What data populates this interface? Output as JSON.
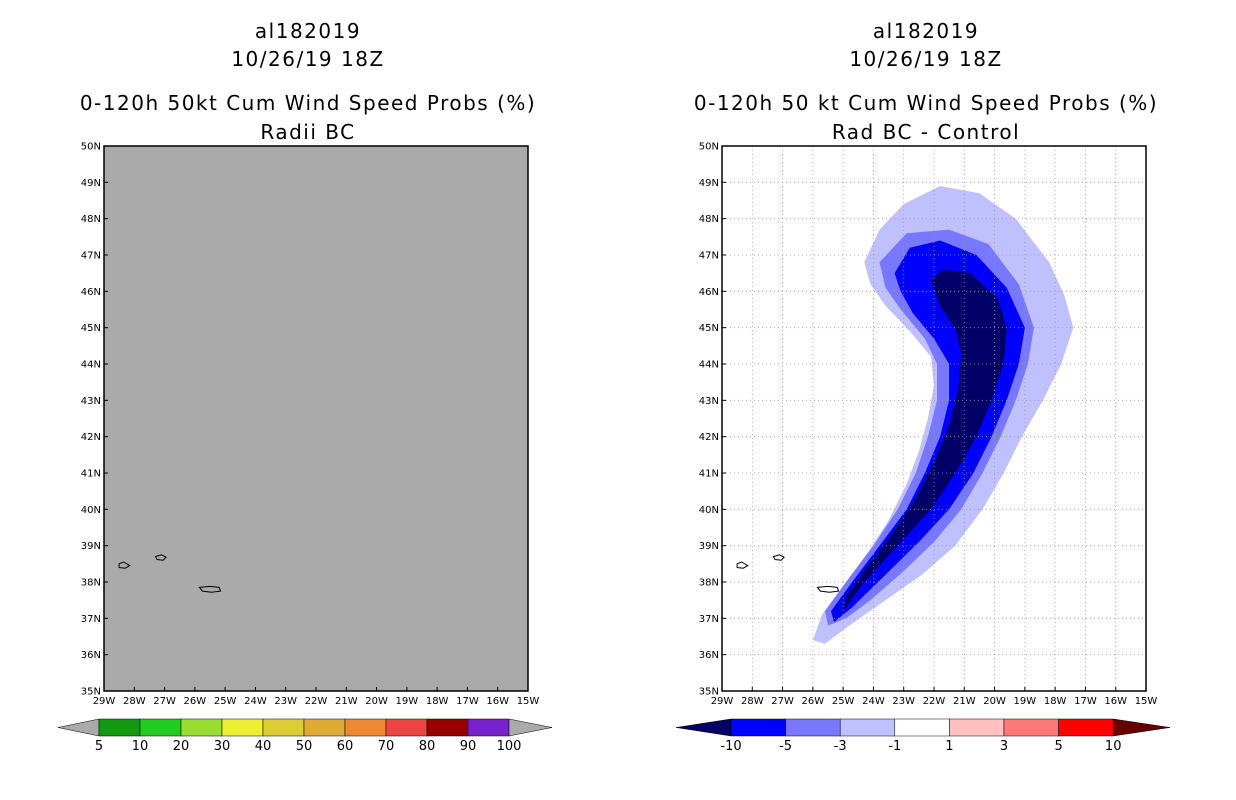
{
  "chart_data": [
    {
      "type": "contour_map",
      "title_lines": [
        "al182019",
        "10/26/19 18Z",
        "0-120h 50kt Cum Wind Speed Probs (%)",
        "Radii BC"
      ],
      "x_ticks": [
        "29W",
        "28W",
        "27W",
        "26W",
        "25W",
        "24W",
        "23W",
        "22W",
        "21W",
        "20W",
        "19W",
        "18W",
        "17W",
        "16W",
        "15W"
      ],
      "y_ticks": [
        "35N",
        "36N",
        "37N",
        "38N",
        "39N",
        "40N",
        "41N",
        "42N",
        "43N",
        "44N",
        "45N",
        "46N",
        "47N",
        "48N",
        "49N",
        "50N"
      ],
      "xlim": [
        -29,
        -15
      ],
      "ylim": [
        35,
        50
      ],
      "grid": false,
      "background": "#aaaaaa",
      "colorbar": {
        "labels": [
          "5",
          "10",
          "20",
          "30",
          "40",
          "50",
          "60",
          "70",
          "80",
          "90",
          "100"
        ],
        "colors": [
          "#119911",
          "#22cc22",
          "#99dd33",
          "#eeee33",
          "#ddcc33",
          "#ddaa33",
          "#ee8833",
          "#ee4444",
          "#990000",
          "#7722cc"
        ],
        "end_colors": [
          "#aaaaaa",
          "#aaaaaa"
        ]
      }
    },
    {
      "type": "contour_map",
      "title_lines": [
        "al182019",
        "10/26/19 18Z",
        "0-120h 50 kt Cum Wind Speed Probs (%)",
        "Rad BC - Control"
      ],
      "x_ticks": [
        "29W",
        "28W",
        "27W",
        "26W",
        "25W",
        "24W",
        "23W",
        "22W",
        "21W",
        "20W",
        "19W",
        "18W",
        "17W",
        "16W",
        "15W"
      ],
      "y_ticks": [
        "35N",
        "36N",
        "37N",
        "38N",
        "39N",
        "40N",
        "41N",
        "42N",
        "43N",
        "44N",
        "45N",
        "46N",
        "47N",
        "48N",
        "49N",
        "50N"
      ],
      "xlim": [
        -29,
        -15
      ],
      "ylim": [
        35,
        50
      ],
      "grid": true,
      "background": "#ffffff",
      "colorbar": {
        "labels": [
          "-10",
          "-5",
          "-3",
          "-1",
          "1",
          "3",
          "5",
          "10"
        ],
        "colors": [
          "#0000ff",
          "#7777ff",
          "#c0c0ff",
          "#ffffff",
          "#ffc0c0",
          "#ff7777",
          "#ff0000"
        ],
        "end_colors": [
          "#000066",
          "#660000"
        ]
      },
      "contours": [
        {
          "level": "-1",
          "color": "#c0c0ff",
          "points": [
            [
              -25.6,
              36.3
            ],
            [
              -26.0,
              36.4
            ],
            [
              -25.7,
              37.1
            ],
            [
              -25.0,
              37.9
            ],
            [
              -24.2,
              38.8
            ],
            [
              -23.5,
              39.7
            ],
            [
              -22.9,
              40.7
            ],
            [
              -22.5,
              41.6
            ],
            [
              -22.2,
              42.5
            ],
            [
              -22.0,
              43.4
            ],
            [
              -22.1,
              44.2
            ],
            [
              -22.8,
              44.9
            ],
            [
              -23.6,
              45.6
            ],
            [
              -24.1,
              46.2
            ],
            [
              -24.3,
              46.8
            ],
            [
              -23.8,
              47.7
            ],
            [
              -23.0,
              48.4
            ],
            [
              -21.8,
              48.9
            ],
            [
              -20.5,
              48.7
            ],
            [
              -19.3,
              48.0
            ],
            [
              -18.2,
              46.8
            ],
            [
              -17.7,
              45.9
            ],
            [
              -17.4,
              45.0
            ],
            [
              -17.8,
              44.0
            ],
            [
              -18.4,
              43.0
            ],
            [
              -19.1,
              42.0
            ],
            [
              -19.7,
              41.0
            ],
            [
              -20.4,
              40.0
            ],
            [
              -21.3,
              39.0
            ],
            [
              -22.4,
              38.2
            ],
            [
              -23.6,
              37.5
            ],
            [
              -24.8,
              36.8
            ]
          ]
        },
        {
          "level": "-3",
          "color": "#7777ff",
          "points": [
            [
              -25.5,
              36.8
            ],
            [
              -25.6,
              37.2
            ],
            [
              -24.9,
              38.0
            ],
            [
              -24.0,
              39.0
            ],
            [
              -23.2,
              40.0
            ],
            [
              -22.6,
              41.0
            ],
            [
              -22.2,
              42.0
            ],
            [
              -21.9,
              43.0
            ],
            [
              -21.9,
              44.0
            ],
            [
              -22.3,
              44.7
            ],
            [
              -23.1,
              45.5
            ],
            [
              -23.6,
              46.1
            ],
            [
              -23.8,
              46.8
            ],
            [
              -22.9,
              47.6
            ],
            [
              -21.5,
              47.7
            ],
            [
              -20.2,
              47.3
            ],
            [
              -19.2,
              46.2
            ],
            [
              -18.7,
              45.0
            ],
            [
              -18.9,
              44.0
            ],
            [
              -19.3,
              43.0
            ],
            [
              -19.8,
              42.0
            ],
            [
              -20.4,
              41.0
            ],
            [
              -21.1,
              40.0
            ],
            [
              -22.0,
              39.1
            ],
            [
              -23.0,
              38.3
            ],
            [
              -24.1,
              37.5
            ],
            [
              -24.9,
              37.0
            ]
          ]
        },
        {
          "level": "-5",
          "color": "#0000ff",
          "points": [
            [
              -25.3,
              36.9
            ],
            [
              -25.4,
              37.2
            ],
            [
              -24.7,
              38.0
            ],
            [
              -23.8,
              39.0
            ],
            [
              -22.9,
              40.0
            ],
            [
              -22.3,
              41.0
            ],
            [
              -21.8,
              42.0
            ],
            [
              -21.5,
              43.0
            ],
            [
              -21.5,
              44.0
            ],
            [
              -22.0,
              44.7
            ],
            [
              -22.7,
              45.4
            ],
            [
              -23.1,
              46.0
            ],
            [
              -23.3,
              46.5
            ],
            [
              -22.8,
              47.2
            ],
            [
              -21.8,
              47.4
            ],
            [
              -20.6,
              47.0
            ],
            [
              -19.6,
              46.1
            ],
            [
              -19.0,
              45.0
            ],
            [
              -19.2,
              44.0
            ],
            [
              -19.6,
              43.0
            ],
            [
              -20.1,
              42.0
            ],
            [
              -20.7,
              41.0
            ],
            [
              -21.5,
              40.0
            ],
            [
              -22.5,
              39.1
            ],
            [
              -23.6,
              38.2
            ],
            [
              -24.7,
              37.3
            ]
          ]
        },
        {
          "level": "-10",
          "color": "#000066",
          "points": [
            [
              -25.0,
              37.2
            ],
            [
              -24.9,
              37.6
            ],
            [
              -24.3,
              38.3
            ],
            [
              -23.4,
              39.3
            ],
            [
              -22.6,
              40.3
            ],
            [
              -22.0,
              41.3
            ],
            [
              -21.5,
              42.3
            ],
            [
              -21.2,
              43.3
            ],
            [
              -21.1,
              44.3
            ],
            [
              -21.3,
              45.0
            ],
            [
              -21.8,
              45.6
            ],
            [
              -22.1,
              46.3
            ],
            [
              -21.7,
              46.6
            ],
            [
              -20.8,
              46.5
            ],
            [
              -19.9,
              45.8
            ],
            [
              -19.6,
              45.0
            ],
            [
              -19.7,
              44.0
            ],
            [
              -20.1,
              43.0
            ],
            [
              -20.6,
              42.0
            ],
            [
              -21.3,
              41.0
            ],
            [
              -22.1,
              40.0
            ],
            [
              -23.2,
              39.0
            ],
            [
              -24.3,
              38.0
            ]
          ]
        }
      ]
    }
  ],
  "islands": [
    [
      [
        -28.5,
        38.5
      ],
      [
        -28.35,
        38.55
      ],
      [
        -28.15,
        38.45
      ],
      [
        -28.3,
        38.38
      ],
      [
        -28.5,
        38.4
      ]
    ],
    [
      [
        -27.3,
        38.7
      ],
      [
        -27.1,
        38.75
      ],
      [
        -26.95,
        38.68
      ],
      [
        -27.05,
        38.6
      ],
      [
        -27.25,
        38.62
      ]
    ],
    [
      [
        -25.85,
        37.85
      ],
      [
        -25.5,
        37.88
      ],
      [
        -25.2,
        37.85
      ],
      [
        -25.15,
        37.75
      ],
      [
        -25.45,
        37.72
      ],
      [
        -25.75,
        37.75
      ]
    ]
  ]
}
